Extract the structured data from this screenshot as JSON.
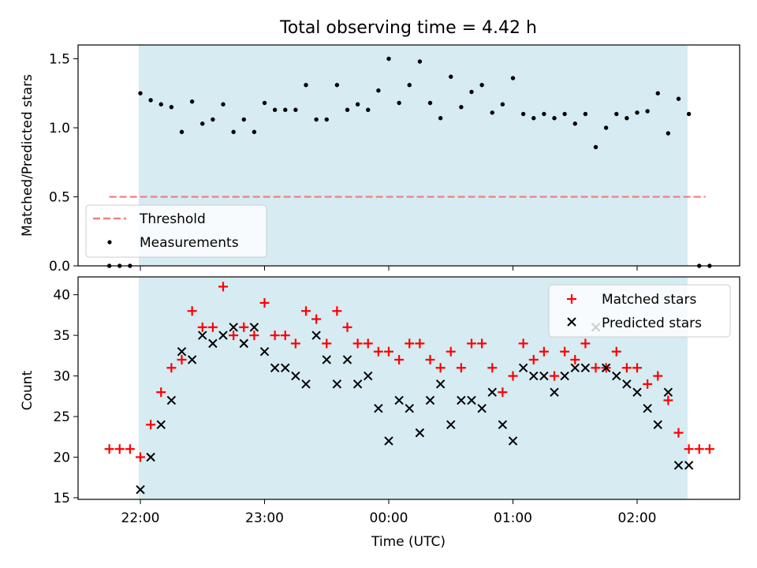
{
  "figure": {
    "title": "Total observing time = 4.42 h"
  },
  "chart_data": [
    {
      "type": "scatter",
      "ylabel": "Matched/Predicted stars",
      "xlabel": "",
      "ylim": [
        0,
        1.6
      ],
      "yticks": [
        "0.0",
        "0.5",
        "1.0",
        "1.5"
      ],
      "xticks": [
        "22:00",
        "23:00",
        "00:00",
        "01:00",
        "02:00"
      ],
      "shaded_interval": [
        "22:00",
        "02:24"
      ],
      "shade_color": "#add8e6",
      "threshold": {
        "name": "Threshold",
        "value": 0.5,
        "color": "#f08080",
        "from": "21:45",
        "to": "02:33"
      },
      "legend_position": "lower-left",
      "series": [
        {
          "name": "Measurements",
          "marker": "dot",
          "color": "#000000",
          "x": [
            "21:45",
            "21:50",
            "21:55",
            "22:00",
            "22:05",
            "22:10",
            "22:15",
            "22:20",
            "22:25",
            "22:30",
            "22:35",
            "22:40",
            "22:45",
            "22:50",
            "22:55",
            "23:00",
            "23:05",
            "23:10",
            "23:15",
            "23:20",
            "23:25",
            "23:30",
            "23:35",
            "23:40",
            "23:45",
            "23:50",
            "23:55",
            "00:00",
            "00:05",
            "00:10",
            "00:15",
            "00:20",
            "00:25",
            "00:30",
            "00:35",
            "00:40",
            "00:45",
            "00:50",
            "00:55",
            "01:00",
            "01:05",
            "01:10",
            "01:15",
            "01:20",
            "01:25",
            "01:30",
            "01:35",
            "01:40",
            "01:45",
            "01:50",
            "01:55",
            "02:00",
            "02:05",
            "02:10",
            "02:15",
            "02:20",
            "02:25",
            "02:30",
            "02:35"
          ],
          "y": [
            0,
            0,
            0,
            1.25,
            1.2,
            1.17,
            1.15,
            0.97,
            1.19,
            1.03,
            1.06,
            1.17,
            0.97,
            1.06,
            0.97,
            1.18,
            1.13,
            1.13,
            1.13,
            1.31,
            1.06,
            1.06,
            1.31,
            1.13,
            1.17,
            1.13,
            1.27,
            1.5,
            1.18,
            1.31,
            1.48,
            1.18,
            1.07,
            1.37,
            1.15,
            1.26,
            1.31,
            1.11,
            1.17,
            1.36,
            1.1,
            1.07,
            1.1,
            1.07,
            1.1,
            1.03,
            1.1,
            0.86,
            1.0,
            1.1,
            1.07,
            1.11,
            1.12,
            1.25,
            0.96,
            1.21,
            1.1,
            0,
            0
          ]
        }
      ]
    },
    {
      "type": "scatter",
      "ylabel": "Count",
      "xlabel": "Time (UTC)",
      "ylim": [
        14.8,
        42.2
      ],
      "yticks": [
        "15",
        "20",
        "25",
        "30",
        "35",
        "40"
      ],
      "xticks": [
        "22:00",
        "23:00",
        "00:00",
        "01:00",
        "02:00"
      ],
      "shaded_interval": [
        "22:00",
        "02:24"
      ],
      "shade_color": "#add8e6",
      "legend_position": "upper-right",
      "series": [
        {
          "name": "Matched stars",
          "marker": "plus",
          "color": "#ff0000",
          "x": [
            "21:45",
            "21:50",
            "21:55",
            "22:00",
            "22:05",
            "22:10",
            "22:15",
            "22:20",
            "22:25",
            "22:30",
            "22:35",
            "22:40",
            "22:45",
            "22:50",
            "22:55",
            "23:00",
            "23:05",
            "23:10",
            "23:15",
            "23:20",
            "23:25",
            "23:30",
            "23:35",
            "23:40",
            "23:45",
            "23:50",
            "23:55",
            "00:00",
            "00:05",
            "00:10",
            "00:15",
            "00:20",
            "00:25",
            "00:30",
            "00:35",
            "00:40",
            "00:45",
            "00:50",
            "00:55",
            "01:00",
            "01:05",
            "01:10",
            "01:15",
            "01:20",
            "01:25",
            "01:30",
            "01:35",
            "01:40",
            "01:45",
            "01:50",
            "01:55",
            "02:00",
            "02:05",
            "02:10",
            "02:15",
            "02:20",
            "02:25",
            "02:30",
            "02:35"
          ],
          "y": [
            21,
            21,
            21,
            20,
            24,
            28,
            31,
            32,
            38,
            36,
            36,
            41,
            35,
            36,
            35,
            39,
            35,
            35,
            34,
            38,
            37,
            34,
            38,
            36,
            34,
            34,
            33,
            33,
            32,
            34,
            34,
            32,
            31,
            33,
            31,
            34,
            34,
            31,
            28,
            30,
            34,
            32,
            33,
            30,
            33,
            32,
            34,
            31,
            31,
            33,
            31,
            31,
            29,
            30,
            27,
            23,
            21,
            21,
            21
          ]
        },
        {
          "name": "Predicted stars",
          "marker": "x",
          "color": "#000000",
          "x": [
            "22:00",
            "22:05",
            "22:10",
            "22:15",
            "22:20",
            "22:25",
            "22:30",
            "22:35",
            "22:40",
            "22:45",
            "22:50",
            "22:55",
            "23:00",
            "23:05",
            "23:10",
            "23:15",
            "23:20",
            "23:25",
            "23:30",
            "23:35",
            "23:40",
            "23:45",
            "23:50",
            "23:55",
            "00:00",
            "00:05",
            "00:10",
            "00:15",
            "00:20",
            "00:25",
            "00:30",
            "00:35",
            "00:40",
            "00:45",
            "00:50",
            "00:55",
            "01:00",
            "01:05",
            "01:10",
            "01:15",
            "01:20",
            "01:25",
            "01:30",
            "01:35",
            "01:40",
            "01:45",
            "01:50",
            "01:55",
            "02:00",
            "02:05",
            "02:10",
            "02:15",
            "02:20",
            "02:25"
          ],
          "y": [
            16,
            20,
            24,
            27,
            33,
            32,
            35,
            34,
            35,
            36,
            34,
            36,
            33,
            31,
            31,
            30,
            29,
            35,
            32,
            29,
            32,
            29,
            30,
            26,
            22,
            27,
            26,
            23,
            27,
            29,
            24,
            27,
            27,
            26,
            28,
            24,
            22,
            31,
            30,
            30,
            28,
            30,
            31,
            31,
            36,
            31,
            30,
            29,
            28,
            26,
            24,
            28,
            19,
            19
          ]
        }
      ]
    }
  ]
}
